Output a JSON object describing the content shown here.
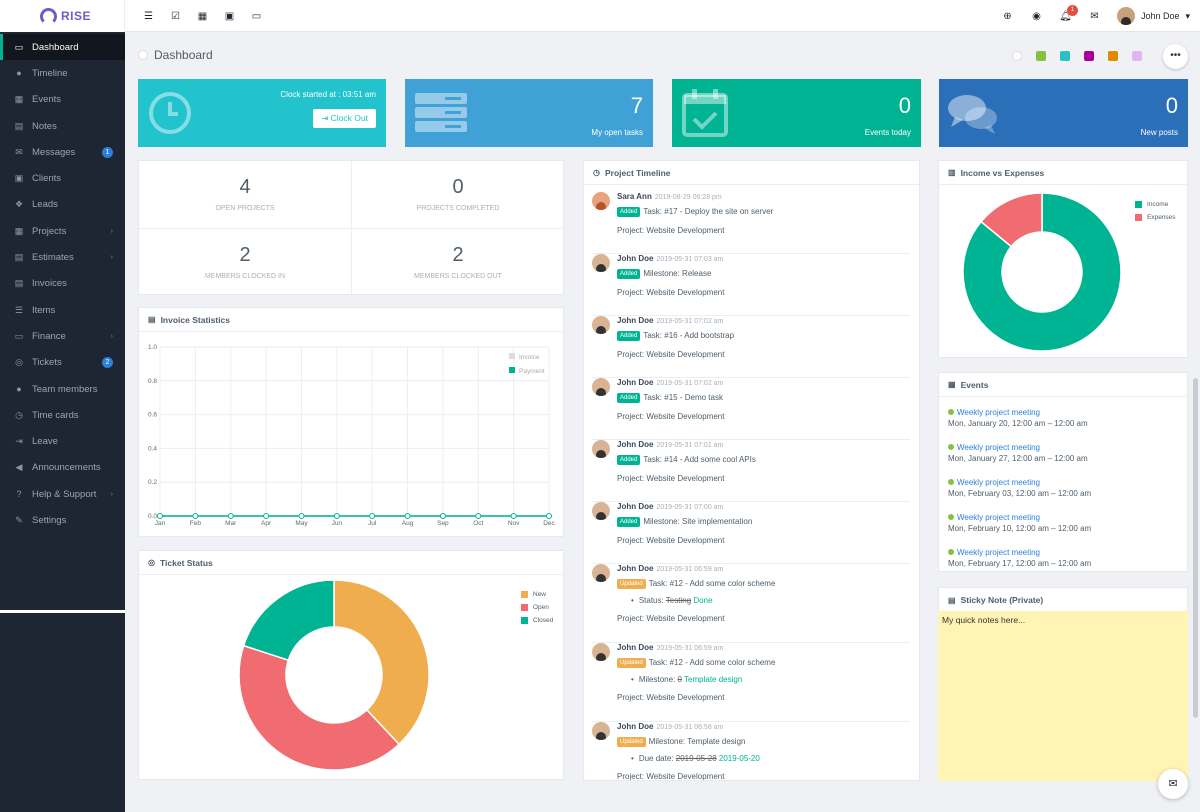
{
  "app": {
    "name": "RISE"
  },
  "sidebar": {
    "items": [
      {
        "label": "Dashboard",
        "icon": "monitor-icon",
        "glyph": "▭"
      },
      {
        "label": "Timeline",
        "icon": "comments-icon",
        "glyph": "●"
      },
      {
        "label": "Events",
        "icon": "calendar-icon",
        "glyph": "▦"
      },
      {
        "label": "Notes",
        "icon": "book-icon",
        "glyph": "▤"
      },
      {
        "label": "Messages",
        "icon": "envelope-icon",
        "glyph": "✉",
        "badge": "1"
      },
      {
        "label": "Clients",
        "icon": "briefcase-icon",
        "glyph": "▣"
      },
      {
        "label": "Leads",
        "icon": "cubes-icon",
        "glyph": "❖"
      },
      {
        "label": "Projects",
        "icon": "grid-icon",
        "glyph": "▦",
        "chevron": "›"
      },
      {
        "label": "Estimates",
        "icon": "file-icon",
        "glyph": "▤",
        "chevron": "›"
      },
      {
        "label": "Invoices",
        "icon": "file-text-icon",
        "glyph": "▤"
      },
      {
        "label": "Items",
        "icon": "list-icon",
        "glyph": "☰"
      },
      {
        "label": "Finance",
        "icon": "money-icon",
        "glyph": "▭",
        "chevron": "›"
      },
      {
        "label": "Tickets",
        "icon": "life-ring-icon",
        "glyph": "◎",
        "badge": "2"
      },
      {
        "label": "Team members",
        "icon": "user-icon",
        "glyph": "●"
      },
      {
        "label": "Time cards",
        "icon": "clock-icon",
        "glyph": "◷"
      },
      {
        "label": "Leave",
        "icon": "sign-out-icon",
        "glyph": "⇥"
      },
      {
        "label": "Announcements",
        "icon": "bullhorn-icon",
        "glyph": "◀"
      },
      {
        "label": "Help & Support",
        "icon": "question-icon",
        "glyph": "?",
        "chevron": "›"
      },
      {
        "label": "Settings",
        "icon": "wrench-icon",
        "glyph": "✎"
      }
    ]
  },
  "topbar": {
    "left_icons": [
      "menu-icon",
      "checklist-icon",
      "apps-icon",
      "briefcase-icon",
      "desktop-icon"
    ],
    "notification_count": "1",
    "user_name": "John Doe",
    "user_caret": "▾"
  },
  "page": {
    "title": "Dashboard",
    "more": "•••"
  },
  "color_swatches": [
    "#ffffff",
    "#83c340",
    "#29c2c2",
    "#aa0099",
    "#e18a00",
    "#e5b3f5"
  ],
  "widgets": {
    "clock": {
      "label": "Clock started at : 03:51 am",
      "button": "Clock Out",
      "color": "#22c3cd"
    },
    "open_tasks": {
      "value": "7",
      "label": "My open tasks",
      "color": "#3fa1d6"
    },
    "events_today": {
      "value": "0",
      "label": "Events today",
      "color": "#00b393"
    },
    "new_posts": {
      "value": "0",
      "label": "New posts",
      "color": "#2b6fb8"
    }
  },
  "project_stats": [
    {
      "value": "4",
      "label": "OPEN PROJECTS"
    },
    {
      "value": "0",
      "label": "PROJECTS COMPLETED"
    },
    {
      "value": "2",
      "label": "MEMBERS CLOCKED IN"
    },
    {
      "value": "2",
      "label": "MEMBERS CLOCKED OUT"
    }
  ],
  "invoice_statistics": {
    "title": "Invoice Statistics",
    "legend": [
      "Invoice",
      "Payment"
    ]
  },
  "ticket_status": {
    "title": "Ticket Status",
    "legend": [
      "New",
      "Open",
      "Closed"
    ]
  },
  "income_expenses": {
    "title": "Income vs Expenses",
    "legend": [
      "Income",
      "Expenses"
    ]
  },
  "timeline": {
    "title": "Project Timeline",
    "items": [
      {
        "name": "Sara Ann",
        "date": "2019-08-29 06:28 pm",
        "tag": "Added",
        "text": "Task: #17 - Deploy the site on server",
        "project": "Project: Website Development",
        "female": true
      },
      {
        "name": "John Doe",
        "date": "2019-05-31 07:03 am",
        "tag": "Added",
        "text": "Milestone: Release",
        "project": "Project: Website Development"
      },
      {
        "name": "John Doe",
        "date": "2019-05-31 07:02 am",
        "tag": "Added",
        "text": "Task: #16 - Add bootstrap",
        "project": "Project: Website Development"
      },
      {
        "name": "John Doe",
        "date": "2019-05-31 07:02 am",
        "tag": "Added",
        "text": "Task: #15 - Demo task",
        "project": "Project: Website Development"
      },
      {
        "name": "John Doe",
        "date": "2019-05-31 07:01 am",
        "tag": "Added",
        "text": "Task: #14 - Add some cool APIs",
        "project": "Project: Website Development"
      },
      {
        "name": "John Doe",
        "date": "2019-05-31 07:00 am",
        "tag": "Added",
        "text": "Milestone: Site implementation",
        "project": "Project: Website Development"
      },
      {
        "name": "John Doe",
        "date": "2019-05-31 06:59 am",
        "tag": "Updated",
        "text": "Task: #12 - Add some color scheme",
        "sub_label": "Status:",
        "sub_old": "Testing",
        "sub_new": "Done",
        "project": "Project: Website Development"
      },
      {
        "name": "John Doe",
        "date": "2019-05-31 06:59 am",
        "tag": "Updated",
        "text": "Task: #12 - Add some color scheme",
        "sub_label": "Milestone:",
        "sub_old": "0",
        "sub_new": "Template design",
        "project": "Project: Website Development"
      },
      {
        "name": "John Doe",
        "date": "2019-05-31 06:58 am",
        "tag": "Updated",
        "text": "Milestone: Template design",
        "sub_label": "Due date:",
        "sub_old": "2019-05-28",
        "sub_new": "2019-05-20",
        "project": "Project: Website Development"
      }
    ]
  },
  "events": {
    "title": "Events",
    "items": [
      {
        "title": "Weekly project meeting",
        "time": "Mon, January 20, 12:00 am – 12:00 am"
      },
      {
        "title": "Weekly project meeting",
        "time": "Mon, January 27, 12:00 am – 12:00 am"
      },
      {
        "title": "Weekly project meeting",
        "time": "Mon, February 03, 12:00 am – 12:00 am"
      },
      {
        "title": "Weekly project meeting",
        "time": "Mon, February 10, 12:00 am – 12:00 am"
      },
      {
        "title": "Weekly project meeting",
        "time": "Mon, February 17, 12:00 am – 12:00 am"
      }
    ]
  },
  "sticky_note": {
    "title": "Sticky Note (Private)",
    "text": "My quick notes here..."
  },
  "chart_data": [
    {
      "type": "line",
      "title": "Invoice Statistics",
      "categories": [
        "Jan",
        "Feb",
        "Mar",
        "Apr",
        "May",
        "Jun",
        "Jul",
        "Aug",
        "Sep",
        "Oct",
        "Nov",
        "Dec"
      ],
      "series": [
        {
          "name": "Invoice",
          "values": [
            0,
            0,
            0,
            0,
            0,
            0,
            0,
            0,
            0,
            0,
            0,
            0
          ],
          "color": "#dcdcdc"
        },
        {
          "name": "Payment",
          "values": [
            0,
            0,
            0,
            0,
            0,
            0,
            0,
            0,
            0,
            0,
            0,
            0
          ],
          "color": "#00b393"
        }
      ],
      "ylim": [
        0,
        1.0
      ],
      "yticks": [
        "1.0",
        "0.8",
        "0.6",
        "0.4",
        "0.2",
        "0.0"
      ],
      "grid": true,
      "legend": "top-right"
    },
    {
      "type": "pie",
      "title": "Ticket Status",
      "donut": true,
      "series": [
        {
          "name": "New",
          "value": 38,
          "color": "#f0ad4e"
        },
        {
          "name": "Open",
          "value": 42,
          "color": "#f06c71"
        },
        {
          "name": "Closed",
          "value": 20,
          "color": "#00b393"
        }
      ],
      "legend": "top-right"
    },
    {
      "type": "pie",
      "title": "Income vs Expenses",
      "donut": true,
      "series": [
        {
          "name": "Income",
          "value": 86,
          "color": "#00b393"
        },
        {
          "name": "Expenses",
          "value": 14,
          "color": "#f06c71"
        }
      ],
      "legend": "top-right"
    }
  ]
}
